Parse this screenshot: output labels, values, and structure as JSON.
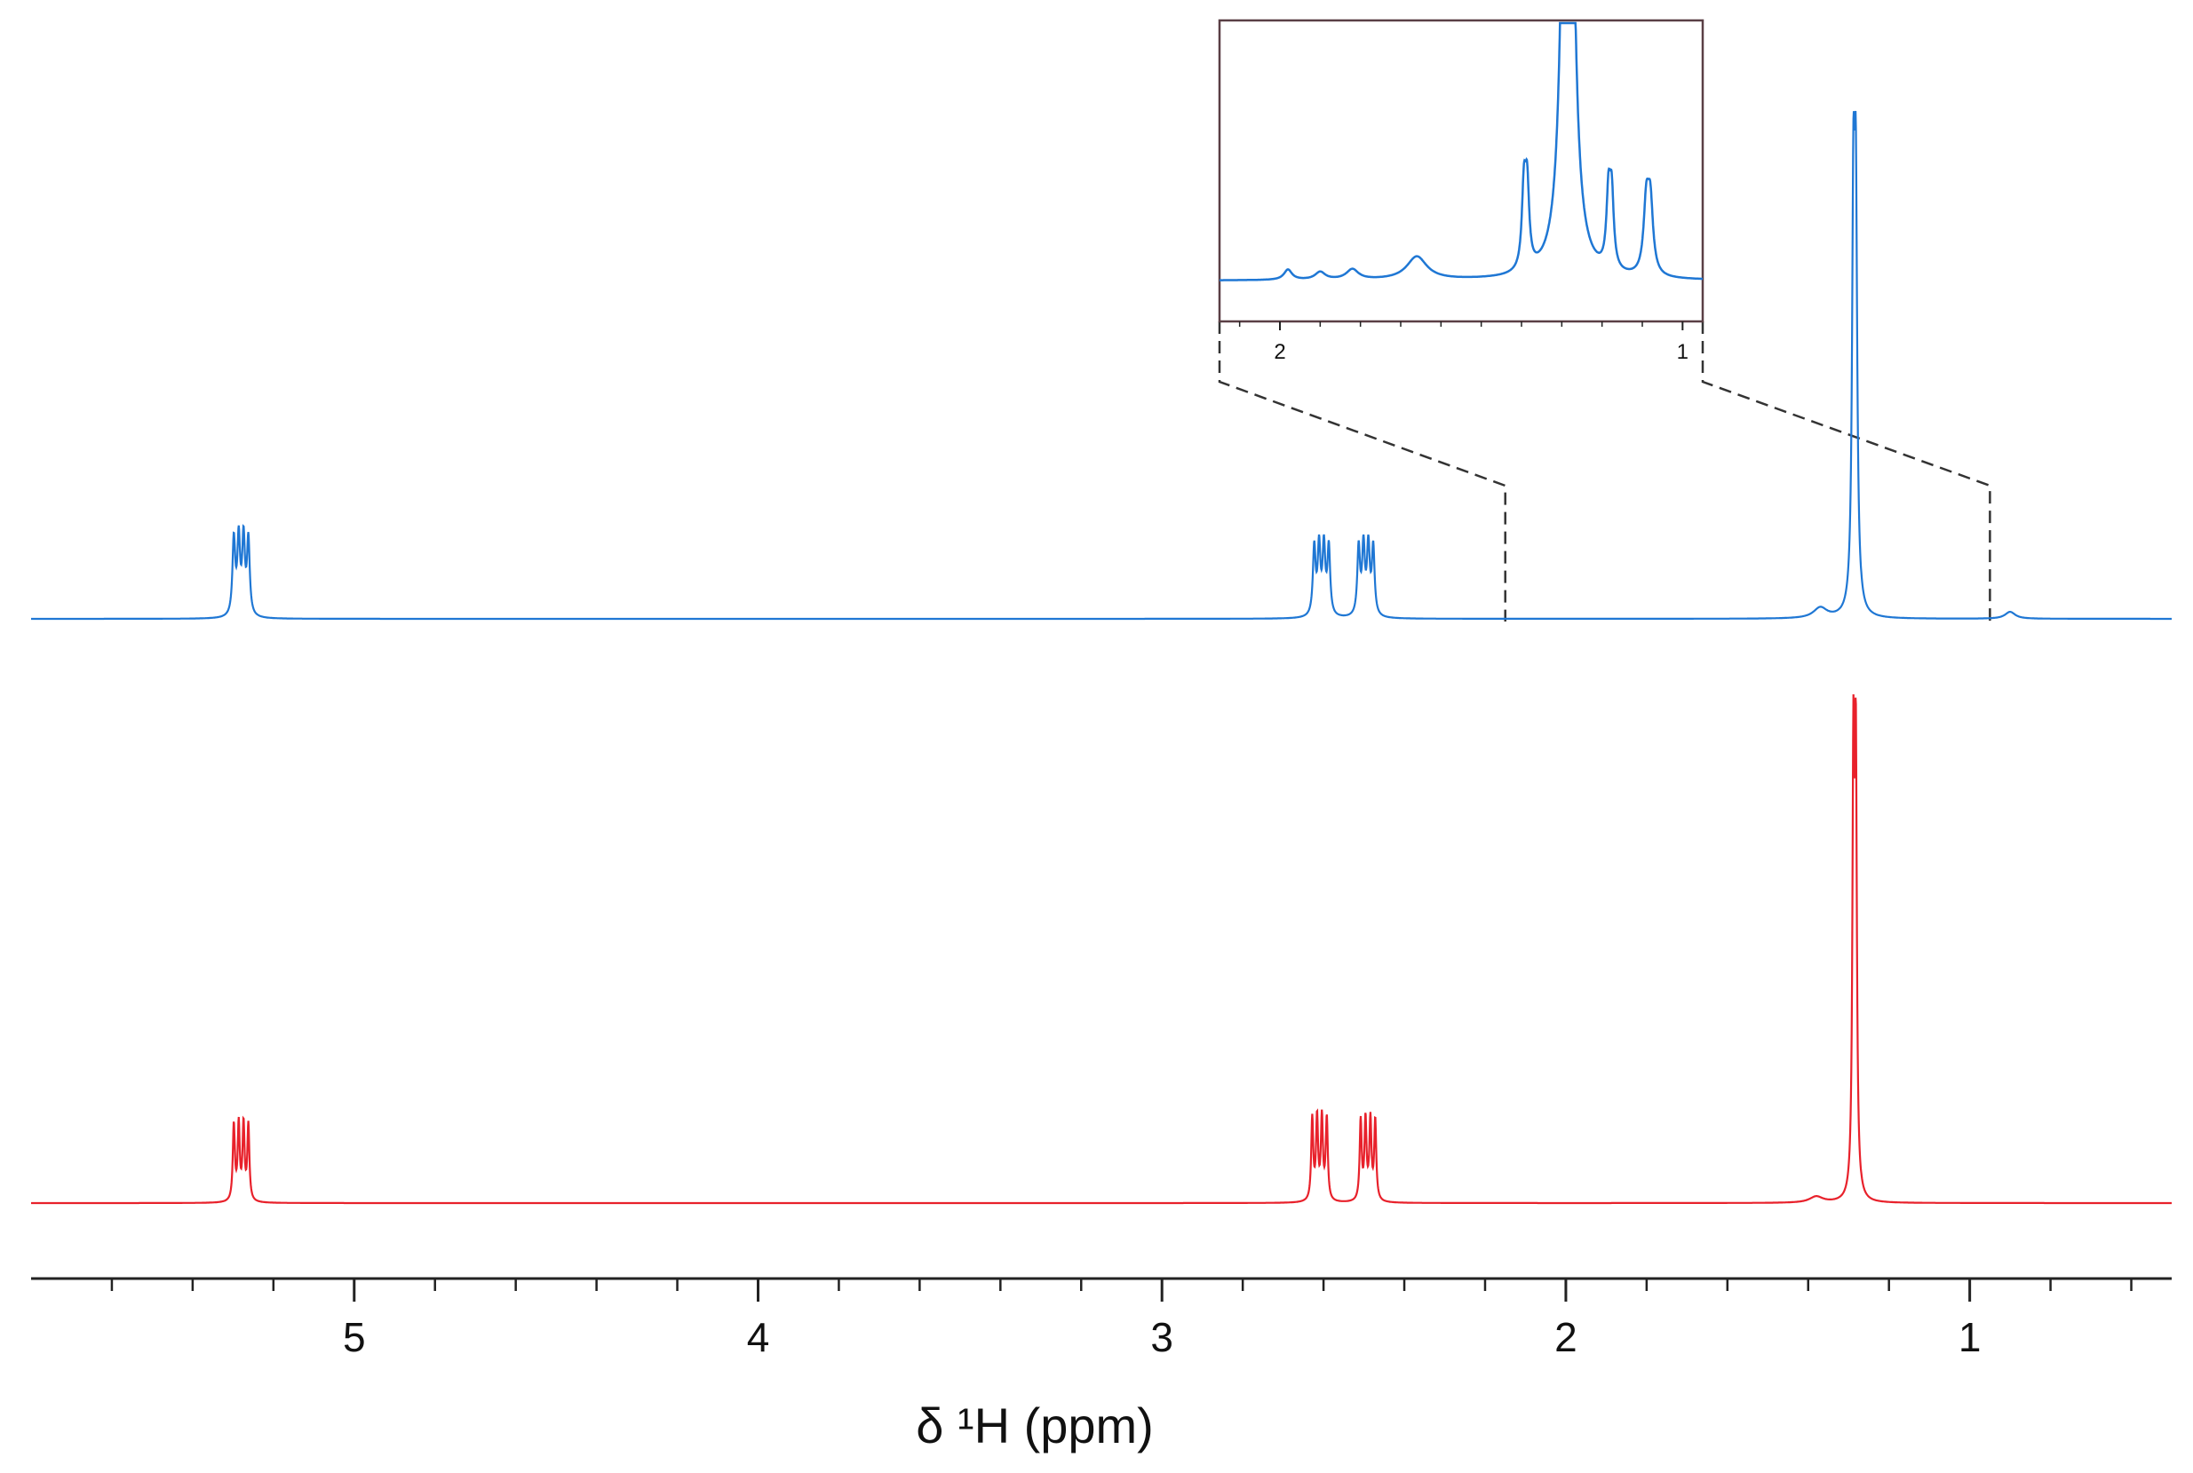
{
  "chart_data": {
    "type": "line",
    "title": "",
    "xlabel": "δ ¹H (ppm)",
    "ylabel": "",
    "x_reversed": true,
    "xlim": [
      5.8,
      0.5
    ],
    "major_ticks": [
      5,
      4,
      3,
      2,
      1
    ],
    "minor_tick_step": 0.2,
    "grid": false,
    "legend": "none",
    "series": [
      {
        "color": "#1f77d4",
        "baseline": 0.0,
        "peaks": [
          {
            "x": 5.28,
            "height": 0.2,
            "multiplet": 4,
            "spacing": 0.012,
            "width": 0.004
          },
          {
            "x": 2.605,
            "height": 0.18,
            "multiplet": 4,
            "spacing": 0.012,
            "width": 0.004
          },
          {
            "x": 2.495,
            "height": 0.18,
            "multiplet": 4,
            "spacing": 0.012,
            "width": 0.004
          },
          {
            "x": 1.285,
            "height": 1.0,
            "multiplet": 2,
            "spacing": 0.006,
            "width": 0.004
          },
          {
            "x": 1.37,
            "height": 0.015,
            "multiplet": 1,
            "spacing": 0,
            "width": 0.02
          },
          {
            "x": 0.9,
            "height": 0.01,
            "multiplet": 1,
            "spacing": 0,
            "width": 0.015
          }
        ]
      },
      {
        "color": "#e8212b",
        "baseline": 0.0,
        "peaks": [
          {
            "x": 5.28,
            "height": 0.18,
            "multiplet": 4,
            "spacing": 0.012,
            "width": 0.003
          },
          {
            "x": 2.61,
            "height": 0.195,
            "multiplet": 4,
            "spacing": 0.012,
            "width": 0.003
          },
          {
            "x": 2.49,
            "height": 0.19,
            "multiplet": 4,
            "spacing": 0.012,
            "width": 0.003
          },
          {
            "x": 1.285,
            "height": 1.0,
            "multiplet": 2,
            "spacing": 0.006,
            "width": 0.003
          },
          {
            "x": 1.38,
            "height": 0.008,
            "multiplet": 1,
            "spacing": 0,
            "width": 0.02
          }
        ]
      }
    ],
    "inset": {
      "series_color": "#1f77d4",
      "xlim": [
        2.15,
        0.95
      ],
      "major_ticks": [
        2,
        1
      ],
      "y_clip": 1.0,
      "peaks": [
        {
          "x": 1.98,
          "height": 0.04,
          "multiplet": 1,
          "spacing": 0,
          "width": 0.012
        },
        {
          "x": 1.9,
          "height": 0.03,
          "multiplet": 1,
          "spacing": 0,
          "width": 0.015
        },
        {
          "x": 1.82,
          "height": 0.04,
          "multiplet": 1,
          "spacing": 0,
          "width": 0.018
        },
        {
          "x": 1.66,
          "height": 0.09,
          "multiplet": 1,
          "spacing": 0,
          "width": 0.03
        },
        {
          "x": 1.39,
          "height": 0.55,
          "multiplet": 2,
          "spacing": 0.008,
          "width": 0.006
        },
        {
          "x": 1.285,
          "height": 3.0,
          "multiplet": 2,
          "spacing": 0.01,
          "width": 0.012
        },
        {
          "x": 1.18,
          "height": 0.5,
          "multiplet": 2,
          "spacing": 0.008,
          "width": 0.006
        },
        {
          "x": 1.085,
          "height": 0.48,
          "multiplet": 2,
          "spacing": 0.01,
          "width": 0.008
        }
      ]
    },
    "zoom_region": [
      2.15,
      0.95
    ]
  }
}
